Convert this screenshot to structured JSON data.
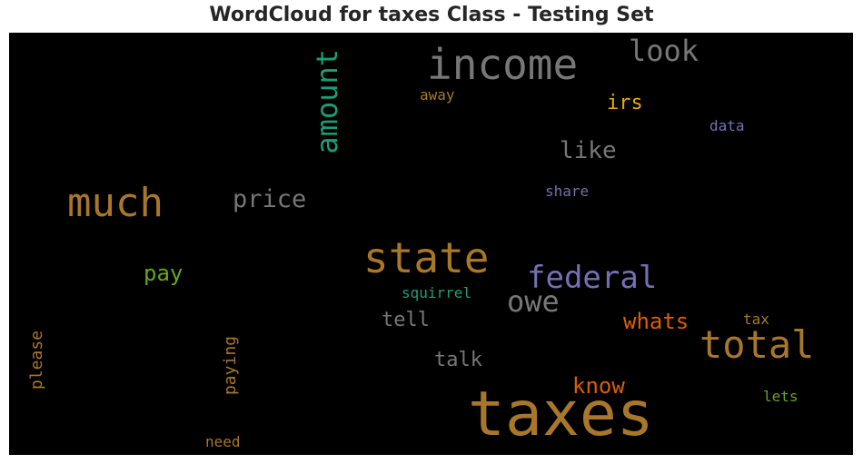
{
  "chart_data": {
    "type": "wordcloud",
    "title": "WordCloud for taxes Class - Testing Set",
    "background": "#000000",
    "words": [
      {
        "text": "taxes",
        "color": "#a8772a",
        "vertical": false
      },
      {
        "text": "income",
        "color": "#777777",
        "vertical": false
      },
      {
        "text": "state",
        "color": "#a8772a",
        "vertical": false
      },
      {
        "text": "much",
        "color": "#a8772a",
        "vertical": false
      },
      {
        "text": "total",
        "color": "#a8772a",
        "vertical": false
      },
      {
        "text": "federal",
        "color": "#7570b3",
        "vertical": false
      },
      {
        "text": "amount",
        "color": "#1b9e77",
        "vertical": true
      },
      {
        "text": "look",
        "color": "#777777",
        "vertical": false
      },
      {
        "text": "owe",
        "color": "#777777",
        "vertical": false
      },
      {
        "text": "price",
        "color": "#777777",
        "vertical": false
      },
      {
        "text": "like",
        "color": "#777777",
        "vertical": false
      },
      {
        "text": "whats",
        "color": "#d95f02",
        "vertical": false
      },
      {
        "text": "know",
        "color": "#d95f02",
        "vertical": false
      },
      {
        "text": "pay",
        "color": "#66a61e",
        "vertical": false
      },
      {
        "text": "irs",
        "color": "#e6ab02",
        "vertical": false
      },
      {
        "text": "tell",
        "color": "#777777",
        "vertical": false
      },
      {
        "text": "talk",
        "color": "#777777",
        "vertical": false
      },
      {
        "text": "paying",
        "color": "#a8772a",
        "vertical": true
      },
      {
        "text": "please",
        "color": "#a8772a",
        "vertical": true
      },
      {
        "text": "squirrel",
        "color": "#1b9e77",
        "vertical": false
      },
      {
        "text": "share",
        "color": "#7570b3",
        "vertical": false
      },
      {
        "text": "data",
        "color": "#7570b3",
        "vertical": false
      },
      {
        "text": "away",
        "color": "#a8772a",
        "vertical": false
      },
      {
        "text": "tax",
        "color": "#a8772a",
        "vertical": false
      },
      {
        "text": "lets",
        "color": "#66a61e",
        "vertical": false
      },
      {
        "text": "need",
        "color": "#a8772a",
        "vertical": false
      }
    ]
  }
}
